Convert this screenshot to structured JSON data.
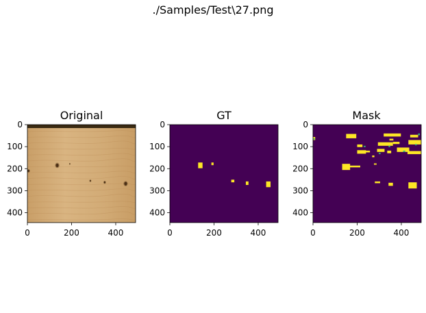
{
  "figure": {
    "suptitle": "./Samples/Test\\27.png"
  },
  "colors": {
    "background_purple": "#440154",
    "defect_yellow": "#fde725",
    "mask_cyan": "#35b779",
    "wood_light": "#d8b27e",
    "wood_mid": "#c9a06a",
    "wood_edge_dark": "#3a2a12",
    "knot_dark": "#5a3a1c"
  },
  "panels": [
    {
      "title": "Original",
      "xticks": [
        "0",
        "200",
        "400"
      ],
      "yticks": [
        "0",
        "100",
        "200",
        "300",
        "400"
      ]
    },
    {
      "title": "GT",
      "xticks": [
        "0",
        "200",
        "400"
      ],
      "yticks": [
        "0",
        "100",
        "200",
        "300",
        "400"
      ]
    },
    {
      "title": "Mask",
      "xticks": [
        "0",
        "200",
        "400"
      ],
      "yticks": [
        "0",
        "100",
        "200",
        "300",
        "400"
      ]
    }
  ],
  "image_extent": {
    "width": 490,
    "height": 445
  },
  "gt_regions": [
    {
      "x0": 128,
      "y0": 172,
      "x1": 148,
      "y1": 198
    },
    {
      "x0": 188,
      "y0": 172,
      "x1": 198,
      "y1": 184
    },
    {
      "x0": 278,
      "y0": 250,
      "x1": 292,
      "y1": 262
    },
    {
      "x0": 344,
      "y0": 258,
      "x1": 356,
      "y1": 274
    },
    {
      "x0": 436,
      "y0": 258,
      "x1": 456,
      "y1": 284
    }
  ],
  "mask_regions": [
    {
      "x0": 132,
      "y0": 178,
      "x1": 168,
      "y1": 206
    },
    {
      "x0": 166,
      "y0": 186,
      "x1": 214,
      "y1": 194
    },
    {
      "x0": 150,
      "y0": 42,
      "x1": 196,
      "y1": 62
    },
    {
      "x0": 200,
      "y0": 90,
      "x1": 224,
      "y1": 102
    },
    {
      "x0": 200,
      "y0": 116,
      "x1": 240,
      "y1": 132
    },
    {
      "x0": 238,
      "y0": 118,
      "x1": 258,
      "y1": 126
    },
    {
      "x0": 268,
      "y0": 140,
      "x1": 278,
      "y1": 148
    },
    {
      "x0": 290,
      "y0": 110,
      "x1": 324,
      "y1": 124
    },
    {
      "x0": 294,
      "y0": 80,
      "x1": 362,
      "y1": 96
    },
    {
      "x0": 320,
      "y0": 40,
      "x1": 398,
      "y1": 54
    },
    {
      "x0": 346,
      "y0": 64,
      "x1": 364,
      "y1": 72
    },
    {
      "x0": 362,
      "y0": 78,
      "x1": 392,
      "y1": 88
    },
    {
      "x0": 336,
      "y0": 118,
      "x1": 354,
      "y1": 130
    },
    {
      "x0": 380,
      "y0": 104,
      "x1": 436,
      "y1": 124
    },
    {
      "x0": 432,
      "y0": 70,
      "x1": 490,
      "y1": 90
    },
    {
      "x0": 428,
      "y0": 120,
      "x1": 490,
      "y1": 134
    },
    {
      "x0": 440,
      "y0": 46,
      "x1": 476,
      "y1": 58
    },
    {
      "x0": 280,
      "y0": 258,
      "x1": 304,
      "y1": 266
    },
    {
      "x0": 342,
      "y0": 264,
      "x1": 362,
      "y1": 278
    },
    {
      "x0": 432,
      "y0": 262,
      "x1": 470,
      "y1": 290
    },
    {
      "x0": 276,
      "y0": 176,
      "x1": 288,
      "y1": 182
    },
    {
      "x0": 0,
      "y0": 56,
      "x1": 10,
      "y1": 70
    }
  ],
  "mask_cyan_regions": [
    {
      "x0": 2,
      "y0": 62,
      "x1": 8,
      "y1": 68
    },
    {
      "x0": 230,
      "y0": 96,
      "x1": 238,
      "y1": 102
    },
    {
      "x0": 342,
      "y0": 96,
      "x1": 350,
      "y1": 102
    },
    {
      "x0": 408,
      "y0": 118,
      "x1": 418,
      "y1": 124
    },
    {
      "x0": 462,
      "y0": 88,
      "x1": 470,
      "y1": 94
    },
    {
      "x0": 298,
      "y0": 128,
      "x1": 306,
      "y1": 134
    },
    {
      "x0": 476,
      "y0": 40,
      "x1": 484,
      "y1": 48
    }
  ],
  "original_knots": [
    {
      "x": 135,
      "y": 185,
      "r": 9
    },
    {
      "x": 192,
      "y": 178,
      "r": 3
    },
    {
      "x": 285,
      "y": 255,
      "r": 4
    },
    {
      "x": 350,
      "y": 262,
      "r": 5
    },
    {
      "x": 445,
      "y": 268,
      "r": 9
    },
    {
      "x": 5,
      "y": 210,
      "r": 6
    }
  ]
}
